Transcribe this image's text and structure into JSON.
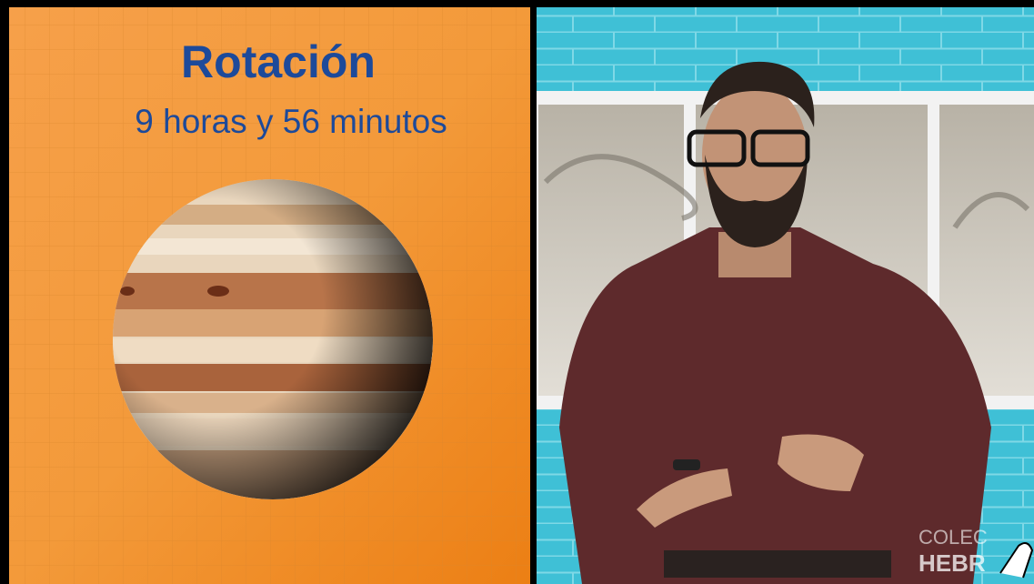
{
  "title": "Rotación",
  "subtitle": "9 horas y 56 minutos",
  "watermark": {
    "line1": "COLEC",
    "line2": "HEBR"
  }
}
